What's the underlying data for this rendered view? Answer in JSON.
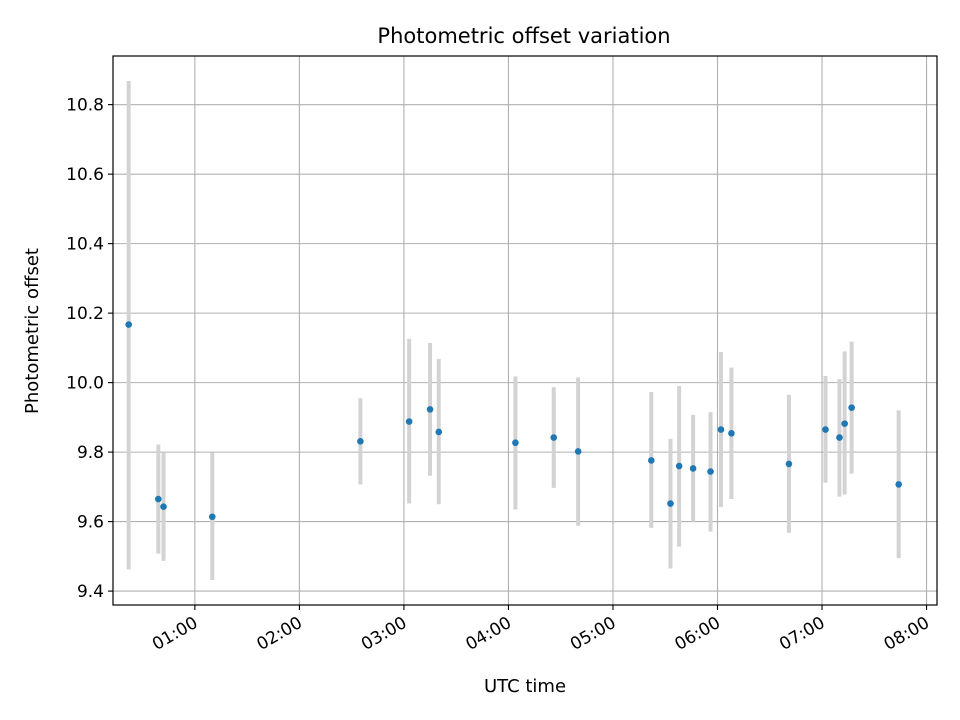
{
  "chart_data": {
    "type": "scatter",
    "title": "Photometric offset variation",
    "xlabel": "UTC time",
    "ylabel": "Photometric offset",
    "x_ticks": [
      "01:00",
      "02:00",
      "03:00",
      "04:00",
      "05:00",
      "06:00",
      "07:00",
      "08:00"
    ],
    "y_ticks": [
      "9.4",
      "9.6",
      "9.8",
      "10.0",
      "10.2",
      "10.4",
      "10.6",
      "10.8"
    ],
    "xlim": [
      "00:13",
      "08:06"
    ],
    "ylim": [
      9.36,
      10.94
    ],
    "grid": true,
    "point_color": "#1f77b4",
    "errorbar_color": "#d3d3d3",
    "points": [
      {
        "x": "00:22",
        "y": 10.167,
        "lo": 9.462,
        "hi": 10.868
      },
      {
        "x": "00:39",
        "y": 9.665,
        "lo": 9.508,
        "hi": 9.822
      },
      {
        "x": "00:42",
        "y": 9.643,
        "lo": 9.487,
        "hi": 9.8
      },
      {
        "x": "01:10",
        "y": 9.614,
        "lo": 9.432,
        "hi": 9.798
      },
      {
        "x": "02:35",
        "y": 9.831,
        "lo": 9.707,
        "hi": 9.955
      },
      {
        "x": "03:03",
        "y": 9.888,
        "lo": 9.652,
        "hi": 10.126
      },
      {
        "x": "03:15",
        "y": 9.923,
        "lo": 9.732,
        "hi": 10.114
      },
      {
        "x": "03:20",
        "y": 9.858,
        "lo": 9.65,
        "hi": 10.068
      },
      {
        "x": "04:04",
        "y": 9.827,
        "lo": 9.635,
        "hi": 10.018
      },
      {
        "x": "04:26",
        "y": 9.842,
        "lo": 9.697,
        "hi": 9.987
      },
      {
        "x": "04:40",
        "y": 9.802,
        "lo": 9.588,
        "hi": 10.015
      },
      {
        "x": "05:22",
        "y": 9.776,
        "lo": 9.582,
        "hi": 9.973
      },
      {
        "x": "05:33",
        "y": 9.652,
        "lo": 9.465,
        "hi": 9.838
      },
      {
        "x": "05:38",
        "y": 9.76,
        "lo": 9.528,
        "hi": 9.99
      },
      {
        "x": "05:46",
        "y": 9.753,
        "lo": 9.6,
        "hi": 9.907
      },
      {
        "x": "05:56",
        "y": 9.744,
        "lo": 9.571,
        "hi": 9.915
      },
      {
        "x": "06:02",
        "y": 9.865,
        "lo": 9.642,
        "hi": 10.088
      },
      {
        "x": "06:08",
        "y": 9.854,
        "lo": 9.665,
        "hi": 10.043
      },
      {
        "x": "06:41",
        "y": 9.766,
        "lo": 9.568,
        "hi": 9.965
      },
      {
        "x": "07:02",
        "y": 9.865,
        "lo": 9.712,
        "hi": 10.019
      },
      {
        "x": "07:10",
        "y": 9.842,
        "lo": 9.672,
        "hi": 10.01
      },
      {
        "x": "07:13",
        "y": 9.882,
        "lo": 9.678,
        "hi": 10.09
      },
      {
        "x": "07:17",
        "y": 9.928,
        "lo": 9.738,
        "hi": 10.118
      },
      {
        "x": "07:44",
        "y": 9.707,
        "lo": 9.495,
        "hi": 9.92
      }
    ]
  }
}
